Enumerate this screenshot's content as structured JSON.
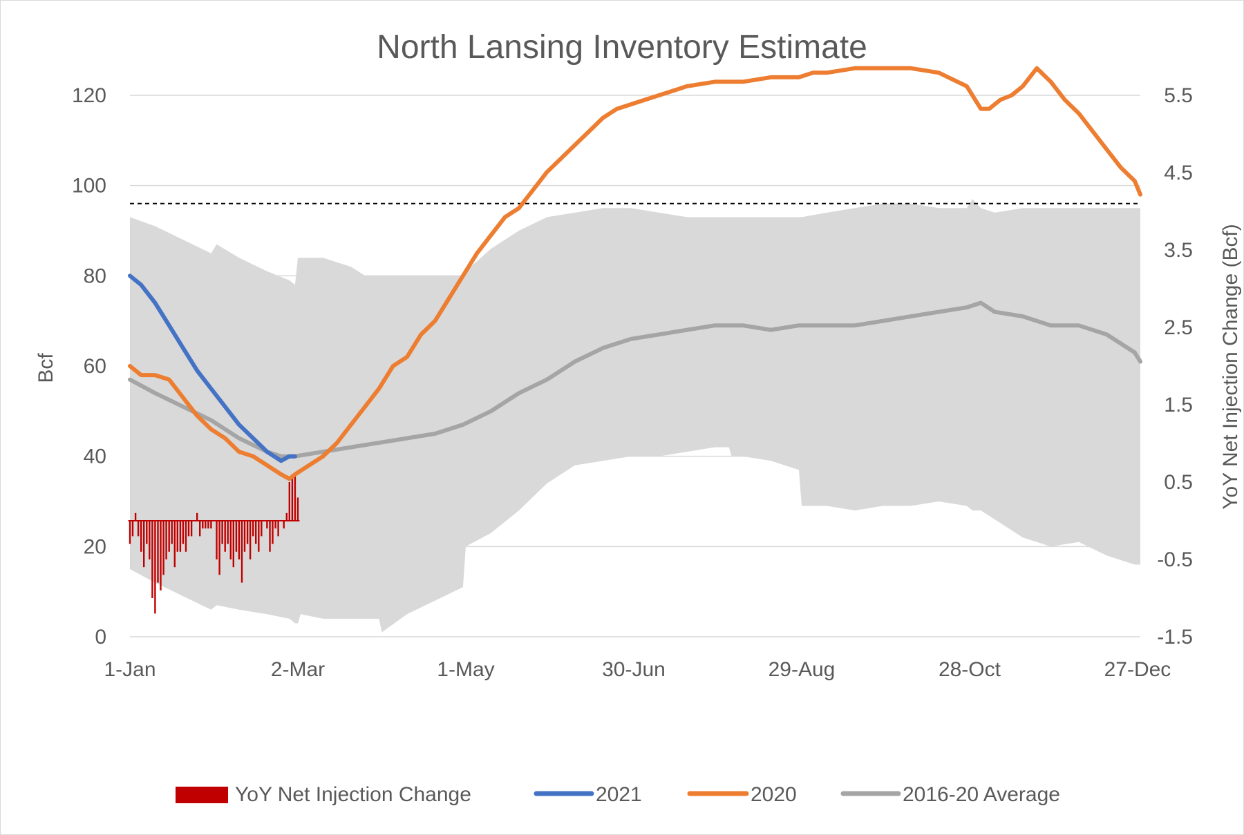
{
  "chart_data": {
    "type": "line",
    "title": "North Lansing Inventory Estimate",
    "ylabel": "Bcf",
    "y2label": "YoY Net  Injection Change  (Bcf)",
    "ylim": [
      0,
      120
    ],
    "y2lim": [
      -1.5,
      5.5
    ],
    "yticks": [
      "0",
      "20",
      "40",
      "60",
      "80",
      "100",
      "120"
    ],
    "y2ticks": [
      "-1.5",
      "-0.5",
      "0.5",
      "1.5",
      "2.5",
      "3.5",
      "4.5",
      "5.5"
    ],
    "xlim": [
      1,
      362
    ],
    "xticks": [
      {
        "day": 1,
        "label": "1-Jan"
      },
      {
        "day": 61,
        "label": "2-Mar"
      },
      {
        "day": 121,
        "label": "1-May"
      },
      {
        "day": 181,
        "label": "30-Jun"
      },
      {
        "day": 241,
        "label": "29-Aug"
      },
      {
        "day": 301,
        "label": "28-Oct"
      },
      {
        "day": 361,
        "label": "27-Dec"
      }
    ],
    "max_capacity_line": 96,
    "range_band": {
      "name": "2016-20 Range",
      "x": [
        1,
        10,
        20,
        30,
        32,
        40,
        50,
        58,
        60,
        61,
        62,
        70,
        80,
        85,
        90,
        91,
        100,
        110,
        120,
        121,
        130,
        140,
        150,
        160,
        170,
        180,
        190,
        200,
        210,
        215,
        216,
        220,
        230,
        240,
        241,
        250,
        260,
        270,
        280,
        290,
        300,
        302,
        305,
        310,
        320,
        330,
        340,
        350,
        360,
        362
      ],
      "high": [
        93,
        91,
        88,
        85,
        87,
        84,
        81,
        79,
        78,
        84,
        84,
        84,
        82,
        80,
        80,
        80,
        80,
        80,
        80,
        81,
        86,
        90,
        93,
        94,
        95,
        95,
        94,
        93,
        93,
        93,
        93,
        93,
        93,
        93,
        93,
        94,
        95,
        96,
        96,
        95,
        95,
        97,
        95,
        94,
        95,
        95,
        95,
        95,
        95,
        95
      ],
      "low": [
        15,
        12,
        9,
        6,
        7,
        6,
        5,
        4,
        3,
        3,
        5,
        4,
        4,
        4,
        4,
        1,
        5,
        8,
        11,
        20,
        23,
        28,
        34,
        38,
        39,
        40,
        40,
        41,
        42,
        42,
        40,
        40,
        39,
        37,
        29,
        29,
        28,
        29,
        29,
        30,
        29,
        28,
        28,
        26,
        22,
        20,
        21,
        18,
        16,
        16
      ]
    },
    "series": [
      {
        "name": "2021",
        "color": "#4472c4",
        "x": [
          1,
          5,
          10,
          15,
          20,
          25,
          30,
          35,
          40,
          45,
          50,
          55,
          58,
          60
        ],
        "values": [
          80,
          78,
          74,
          69,
          64,
          59,
          55,
          51,
          47,
          44,
          41,
          39,
          40,
          40
        ]
      },
      {
        "name": "2020",
        "color": "#ed7d31",
        "x": [
          1,
          5,
          10,
          15,
          20,
          25,
          30,
          35,
          40,
          45,
          50,
          55,
          58,
          60,
          65,
          70,
          75,
          80,
          85,
          90,
          95,
          100,
          105,
          110,
          115,
          120,
          125,
          130,
          135,
          140,
          145,
          150,
          155,
          160,
          165,
          170,
          175,
          180,
          185,
          190,
          195,
          200,
          210,
          220,
          230,
          240,
          245,
          250,
          260,
          270,
          280,
          290,
          300,
          305,
          308,
          312,
          316,
          320,
          325,
          330,
          335,
          340,
          345,
          350,
          355,
          360,
          362
        ],
        "values": [
          60,
          58,
          58,
          57,
          53,
          49,
          46,
          44,
          41,
          40,
          38,
          36,
          35,
          36,
          38,
          40,
          43,
          47,
          51,
          55,
          60,
          62,
          67,
          70,
          75,
          80,
          85,
          89,
          93,
          95,
          99,
          103,
          106,
          109,
          112,
          115,
          117,
          118,
          119,
          120,
          121,
          122,
          123,
          123,
          124,
          124,
          125,
          125,
          126,
          126,
          126,
          125,
          122,
          117,
          117,
          119,
          120,
          122,
          126,
          123,
          119,
          116,
          112,
          108,
          104,
          101,
          98
        ]
      },
      {
        "name": "2016-20 Average",
        "color": "#a5a5a5",
        "x": [
          1,
          10,
          20,
          30,
          40,
          50,
          55,
          60,
          70,
          80,
          90,
          100,
          110,
          120,
          130,
          140,
          150,
          160,
          170,
          180,
          190,
          200,
          210,
          220,
          230,
          240,
          250,
          260,
          270,
          280,
          290,
          300,
          305,
          310,
          320,
          330,
          340,
          350,
          360,
          362
        ],
        "values": [
          57,
          54,
          51,
          48,
          44,
          41,
          40,
          40,
          41,
          42,
          43,
          44,
          45,
          47,
          50,
          54,
          57,
          61,
          64,
          66,
          67,
          68,
          69,
          69,
          68,
          69,
          69,
          69,
          70,
          71,
          72,
          73,
          74,
          72,
          71,
          69,
          69,
          67,
          63,
          61
        ]
      }
    ],
    "bars": {
      "name": "YoY Net Injection Change",
      "color": "#c00000",
      "x": [
        1,
        2,
        3,
        4,
        5,
        6,
        7,
        8,
        9,
        10,
        11,
        12,
        13,
        14,
        15,
        16,
        17,
        18,
        19,
        20,
        21,
        22,
        23,
        24,
        25,
        26,
        27,
        28,
        29,
        30,
        31,
        32,
        33,
        34,
        35,
        36,
        37,
        38,
        39,
        40,
        41,
        42,
        43,
        44,
        45,
        46,
        47,
        48,
        49,
        50,
        51,
        52,
        53,
        54,
        55,
        56,
        57,
        58,
        59,
        60,
        61
      ],
      "values": [
        -0.3,
        -0.2,
        0.1,
        -0.2,
        -0.4,
        -0.6,
        -0.3,
        -0.5,
        -1.0,
        -1.2,
        -0.8,
        -0.9,
        -0.7,
        -0.5,
        -0.4,
        -0.3,
        -0.6,
        -0.4,
        -0.4,
        -0.3,
        -0.4,
        -0.2,
        -0.2,
        0.0,
        0.1,
        -0.2,
        -0.1,
        -0.1,
        -0.1,
        -0.1,
        0.0,
        -0.5,
        -0.7,
        -0.3,
        -0.4,
        -0.3,
        -0.5,
        -0.6,
        -0.4,
        -0.5,
        -0.8,
        -0.4,
        -0.3,
        -0.5,
        -0.2,
        -0.3,
        -0.4,
        -0.2,
        0.0,
        -0.1,
        -0.4,
        -0.3,
        -0.1,
        -0.2,
        0.0,
        -0.1,
        0.1,
        0.5,
        0.6,
        0.6,
        0.3
      ]
    },
    "legend": {
      "position": "bottom",
      "entries": [
        "YoY Net Injection Change",
        "2021",
        "2020",
        "2016-20 Average"
      ]
    }
  }
}
